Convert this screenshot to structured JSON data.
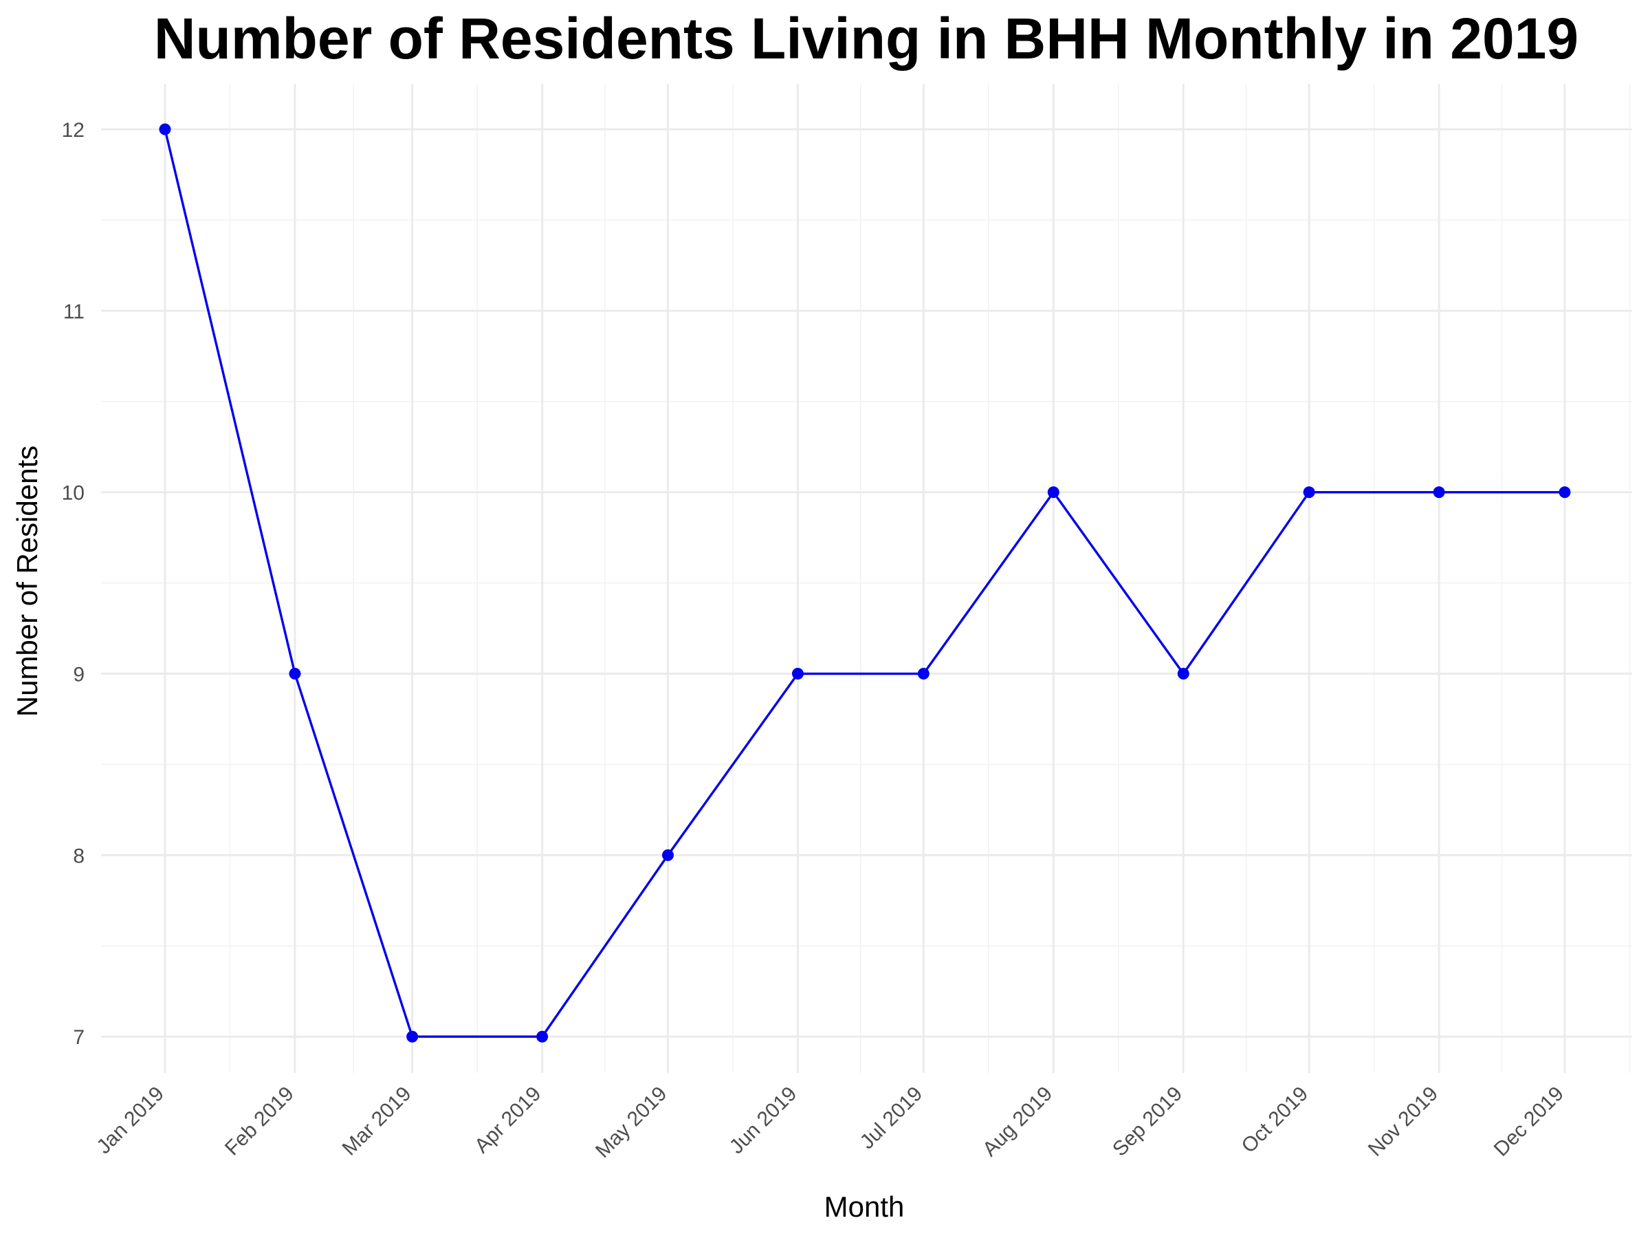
{
  "chart_data": {
    "type": "line",
    "title": "Number of Residents Living in BHH Monthly in 2019",
    "xlabel": "Month",
    "ylabel": "Number of Residents",
    "categories": [
      "Jan 2019",
      "Feb 2019",
      "Mar 2019",
      "Apr 2019",
      "May 2019",
      "Jun 2019",
      "Jul 2019",
      "Aug 2019",
      "Sep 2019",
      "Oct 2019",
      "Nov 2019",
      "Dec 2019"
    ],
    "series": [
      {
        "values": [
          12,
          9,
          7,
          7,
          8,
          9,
          9,
          10,
          9,
          10,
          10,
          10
        ]
      }
    ],
    "ylim": [
      6.8,
      12.25
    ],
    "yticks": [
      7,
      8,
      9,
      10,
      11,
      12
    ],
    "grid": true,
    "legend": "none",
    "colors": {
      "line": "#0000ee",
      "point": "#0000ee",
      "grid": "#ebebeb"
    }
  }
}
